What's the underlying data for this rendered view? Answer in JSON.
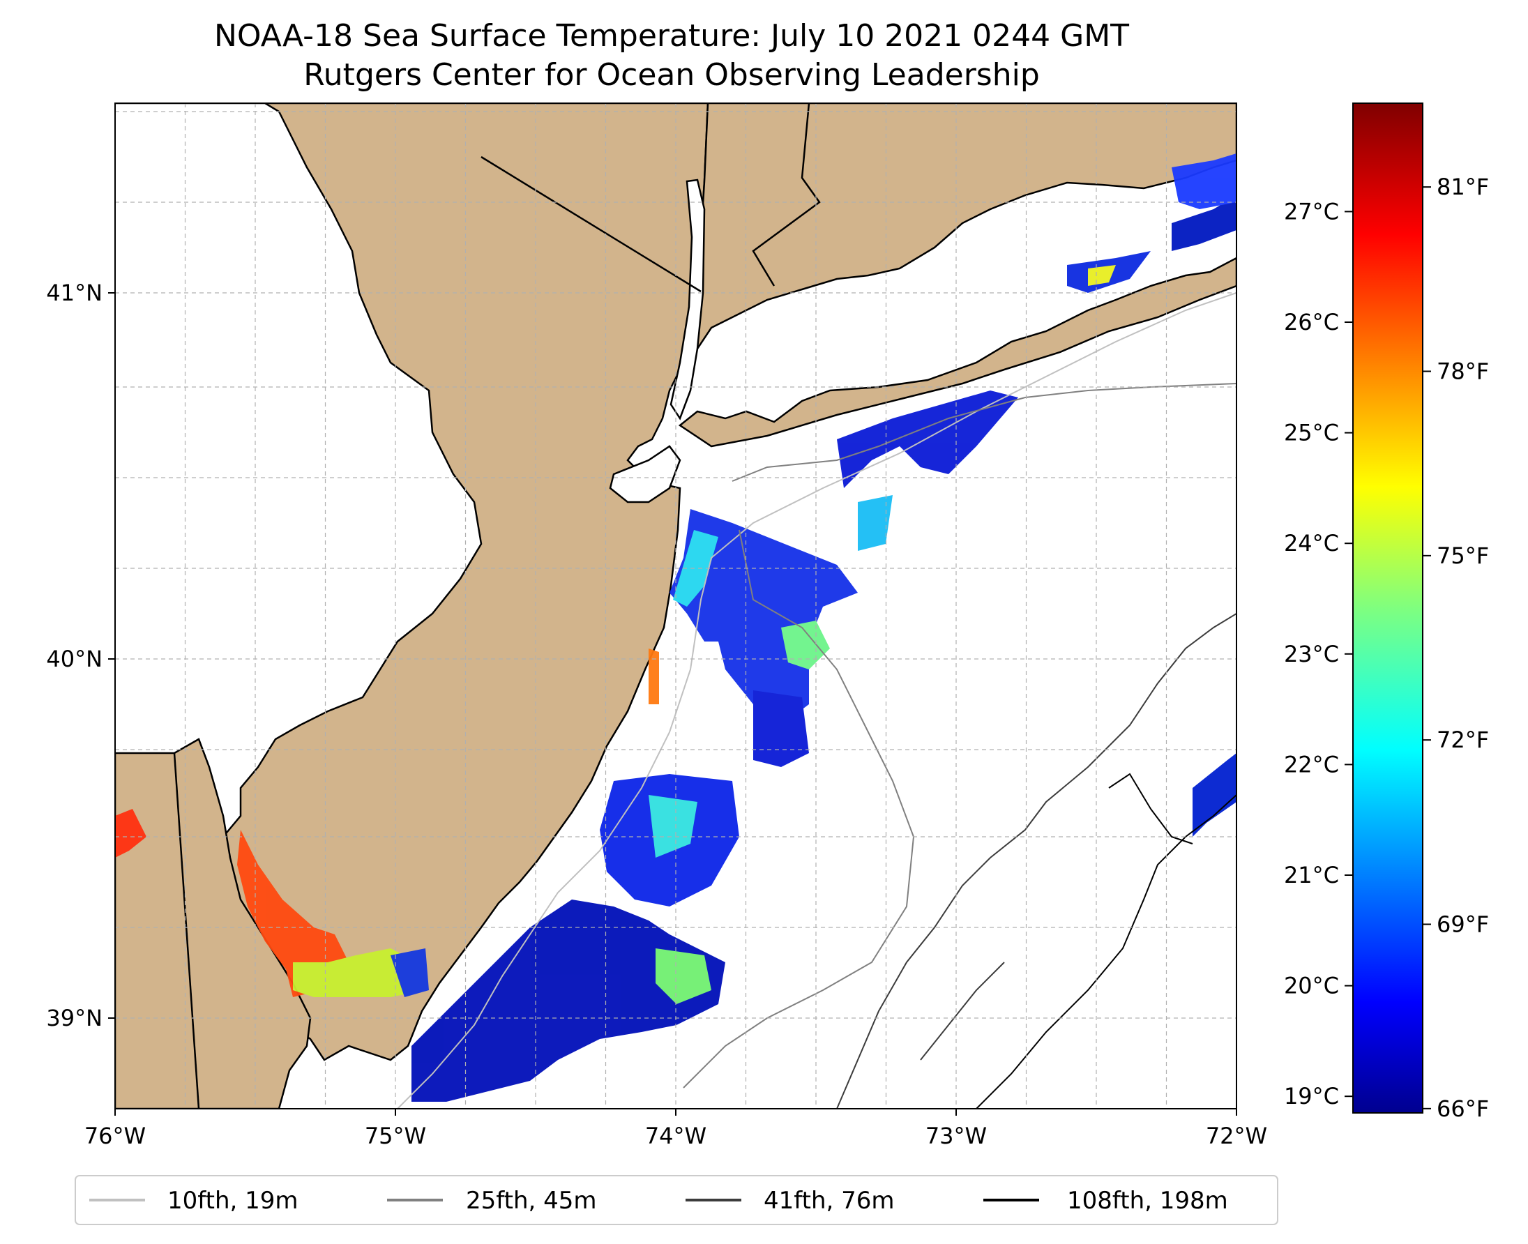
{
  "title": {
    "line1": "NOAA-18 Sea Surface Temperature: July 10 2021 0244 GMT",
    "line2": "Rutgers Center for Ocean Observing Leadership"
  },
  "colors": {
    "land": "#d2b48c",
    "ocean": "#ffffff",
    "coast": "#000000",
    "grid": "#b0b0b0",
    "iso_10": "#c0c0c0",
    "iso_25": "#808080",
    "iso_41": "#3c3c3c",
    "iso_108": "#000000",
    "colormap": "jet"
  },
  "map": {
    "lon_range": [
      -76,
      -72
    ],
    "lat_range": [
      38.75,
      41.52
    ],
    "lon_ticks": [
      {
        "value": -76,
        "label": "76°W"
      },
      {
        "value": -75,
        "label": "75°W"
      },
      {
        "value": -74,
        "label": "74°W"
      },
      {
        "value": -73,
        "label": "73°W"
      },
      {
        "value": -72,
        "label": "72°W"
      }
    ],
    "lat_ticks": [
      {
        "value": 39,
        "label": "39°N"
      },
      {
        "value": 40,
        "label": "40°N"
      },
      {
        "value": 41,
        "label": "41°N"
      }
    ],
    "grid": true
  },
  "colorbar": {
    "vmin_c": 18.85,
    "vmax_c": 27.98,
    "celsius_ticks": [
      {
        "value": 19,
        "label": "19°C"
      },
      {
        "value": 20,
        "label": "20°C"
      },
      {
        "value": 21,
        "label": "21°C"
      },
      {
        "value": 22,
        "label": "22°C"
      },
      {
        "value": 23,
        "label": "23°C"
      },
      {
        "value": 24,
        "label": "24°C"
      },
      {
        "value": 25,
        "label": "25°C"
      },
      {
        "value": 26,
        "label": "26°C"
      },
      {
        "value": 27,
        "label": "27°C"
      }
    ],
    "fahrenheit_ticks": [
      {
        "value": 66,
        "label": "66°F"
      },
      {
        "value": 69,
        "label": "69°F"
      },
      {
        "value": 72,
        "label": "72°F"
      },
      {
        "value": 75,
        "label": "75°F"
      },
      {
        "value": 78,
        "label": "78°F"
      },
      {
        "value": 81,
        "label": "81°F"
      }
    ]
  },
  "legend": {
    "placement": "bottom-center",
    "entries": [
      {
        "label": "10fth, 19m",
        "color": "#c0c0c0"
      },
      {
        "label": "25fth, 45m",
        "color": "#808080"
      },
      {
        "label": "41fth, 76m",
        "color": "#3c3c3c"
      },
      {
        "label": "108fth, 198m",
        "color": "#000000"
      }
    ]
  }
}
